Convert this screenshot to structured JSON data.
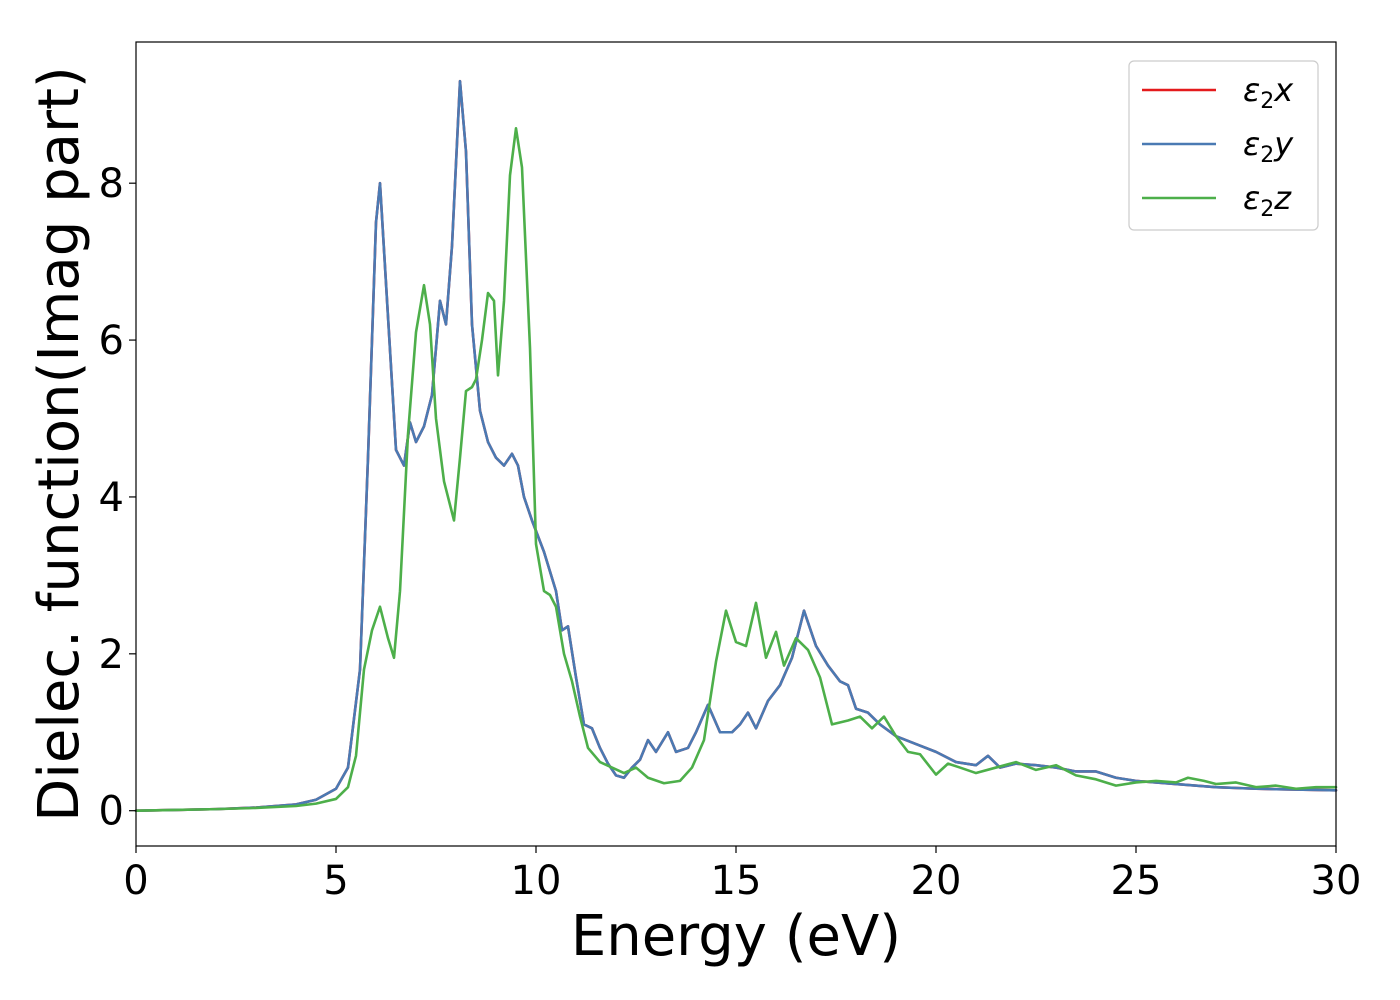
{
  "chart_data": {
    "type": "line",
    "title": "",
    "xlabel": "Energy (eV)",
    "ylabel": "Dielec. function(Imag part)",
    "xlim": [
      0,
      30
    ],
    "ylim": [
      -0.45,
      9.8
    ],
    "xticks": [
      0,
      5,
      10,
      15,
      20,
      25,
      30
    ],
    "yticks": [
      0,
      2,
      4,
      6,
      8
    ],
    "grid": false,
    "legend_position": "top-right",
    "series": [
      {
        "name": "ε₂x",
        "legend_base": "ε",
        "legend_sub": "2",
        "legend_var": "x",
        "color": "#e41a1c",
        "x": [
          0,
          1,
          2,
          3,
          4,
          4.5,
          5,
          5.3,
          5.6,
          5.8,
          6.0,
          6.1,
          6.3,
          6.5,
          6.7,
          6.85,
          7.0,
          7.2,
          7.4,
          7.6,
          7.75,
          7.9,
          8.1,
          8.25,
          8.4,
          8.6,
          8.8,
          9.0,
          9.2,
          9.4,
          9.55,
          9.7,
          9.9,
          10.2,
          10.5,
          10.65,
          10.8,
          11.0,
          11.2,
          11.4,
          11.6,
          11.8,
          12.0,
          12.2,
          12.4,
          12.6,
          12.8,
          13.0,
          13.3,
          13.5,
          13.8,
          14.0,
          14.3,
          14.6,
          14.9,
          15.1,
          15.3,
          15.5,
          15.8,
          16.1,
          16.4,
          16.7,
          17.0,
          17.3,
          17.6,
          17.8,
          18.0,
          18.3,
          18.6,
          19.0,
          19.5,
          20.0,
          20.5,
          21.0,
          21.3,
          21.6,
          22.0,
          22.5,
          23.0,
          23.5,
          24.0,
          24.5,
          25.0,
          26.0,
          27.0,
          28.0,
          29.0,
          30.0
        ],
        "values": [
          0,
          0.01,
          0.02,
          0.04,
          0.08,
          0.14,
          0.28,
          0.55,
          1.8,
          4.5,
          7.5,
          8.0,
          6.3,
          4.6,
          4.4,
          4.95,
          4.7,
          4.9,
          5.3,
          6.5,
          6.2,
          7.2,
          9.3,
          8.4,
          6.2,
          5.1,
          4.7,
          4.5,
          4.4,
          4.55,
          4.4,
          4.0,
          3.7,
          3.3,
          2.8,
          2.3,
          2.35,
          1.7,
          1.1,
          1.05,
          0.8,
          0.6,
          0.45,
          0.42,
          0.55,
          0.65,
          0.9,
          0.75,
          1.0,
          0.75,
          0.8,
          1.0,
          1.35,
          1.0,
          1.0,
          1.1,
          1.25,
          1.05,
          1.4,
          1.6,
          1.95,
          2.55,
          2.1,
          1.85,
          1.65,
          1.6,
          1.3,
          1.25,
          1.1,
          0.95,
          0.85,
          0.75,
          0.62,
          0.58,
          0.7,
          0.55,
          0.6,
          0.58,
          0.55,
          0.5,
          0.5,
          0.42,
          0.38,
          0.34,
          0.3,
          0.28,
          0.27,
          0.26
        ]
      },
      {
        "name": "ε₂y",
        "legend_base": "ε",
        "legend_sub": "2",
        "legend_var": "y",
        "color": "#4a7ab3",
        "x": [
          0,
          1,
          2,
          3,
          4,
          4.5,
          5,
          5.3,
          5.6,
          5.8,
          6.0,
          6.1,
          6.3,
          6.5,
          6.7,
          6.85,
          7.0,
          7.2,
          7.4,
          7.6,
          7.75,
          7.9,
          8.1,
          8.25,
          8.4,
          8.6,
          8.8,
          9.0,
          9.2,
          9.4,
          9.55,
          9.7,
          9.9,
          10.2,
          10.5,
          10.65,
          10.8,
          11.0,
          11.2,
          11.4,
          11.6,
          11.8,
          12.0,
          12.2,
          12.4,
          12.6,
          12.8,
          13.0,
          13.3,
          13.5,
          13.8,
          14.0,
          14.3,
          14.6,
          14.9,
          15.1,
          15.3,
          15.5,
          15.8,
          16.1,
          16.4,
          16.7,
          17.0,
          17.3,
          17.6,
          17.8,
          18.0,
          18.3,
          18.6,
          19.0,
          19.5,
          20.0,
          20.5,
          21.0,
          21.3,
          21.6,
          22.0,
          22.5,
          23.0,
          23.5,
          24.0,
          24.5,
          25.0,
          26.0,
          27.0,
          28.0,
          29.0,
          30.0
        ],
        "values": [
          0,
          0.01,
          0.02,
          0.04,
          0.08,
          0.14,
          0.28,
          0.55,
          1.8,
          4.5,
          7.5,
          8.0,
          6.3,
          4.6,
          4.4,
          4.95,
          4.7,
          4.9,
          5.3,
          6.5,
          6.2,
          7.2,
          9.3,
          8.4,
          6.2,
          5.1,
          4.7,
          4.5,
          4.4,
          4.55,
          4.4,
          4.0,
          3.7,
          3.3,
          2.8,
          2.3,
          2.35,
          1.7,
          1.1,
          1.05,
          0.8,
          0.6,
          0.45,
          0.42,
          0.55,
          0.65,
          0.9,
          0.75,
          1.0,
          0.75,
          0.8,
          1.0,
          1.35,
          1.0,
          1.0,
          1.1,
          1.25,
          1.05,
          1.4,
          1.6,
          1.95,
          2.55,
          2.1,
          1.85,
          1.65,
          1.6,
          1.3,
          1.25,
          1.1,
          0.95,
          0.85,
          0.75,
          0.62,
          0.58,
          0.7,
          0.55,
          0.6,
          0.58,
          0.55,
          0.5,
          0.5,
          0.42,
          0.38,
          0.34,
          0.3,
          0.28,
          0.27,
          0.26
        ]
      },
      {
        "name": "ε₂z",
        "legend_base": "ε",
        "legend_sub": "2",
        "legend_var": "z",
        "color": "#4daf4a",
        "x": [
          0,
          1,
          2,
          3,
          4,
          4.5,
          5,
          5.3,
          5.5,
          5.7,
          5.9,
          6.1,
          6.3,
          6.45,
          6.6,
          6.8,
          7.0,
          7.2,
          7.35,
          7.5,
          7.7,
          7.95,
          8.1,
          8.25,
          8.4,
          8.5,
          8.65,
          8.8,
          8.95,
          9.05,
          9.2,
          9.35,
          9.5,
          9.65,
          9.85,
          10.0,
          10.2,
          10.35,
          10.5,
          10.7,
          10.9,
          11.1,
          11.3,
          11.6,
          11.9,
          12.2,
          12.5,
          12.8,
          13.2,
          13.6,
          13.9,
          14.2,
          14.5,
          14.75,
          15.0,
          15.25,
          15.5,
          15.75,
          16.0,
          16.2,
          16.5,
          16.8,
          17.1,
          17.4,
          17.8,
          18.1,
          18.4,
          18.7,
          19.0,
          19.3,
          19.6,
          20.0,
          20.3,
          20.6,
          21.0,
          21.5,
          22.0,
          22.5,
          23.0,
          23.5,
          24.0,
          24.5,
          25.0,
          25.5,
          26.0,
          26.3,
          26.7,
          27.0,
          27.5,
          28.0,
          28.5,
          29.0,
          29.5,
          30.0
        ],
        "values": [
          0,
          0.01,
          0.02,
          0.035,
          0.06,
          0.09,
          0.15,
          0.3,
          0.7,
          1.8,
          2.3,
          2.6,
          2.2,
          1.95,
          2.8,
          4.8,
          6.1,
          6.7,
          6.2,
          5.0,
          4.2,
          3.7,
          4.5,
          5.35,
          5.4,
          5.5,
          6.0,
          6.6,
          6.5,
          5.55,
          6.5,
          8.1,
          8.7,
          8.2,
          5.9,
          3.4,
          2.8,
          2.75,
          2.6,
          2.0,
          1.65,
          1.2,
          0.8,
          0.62,
          0.55,
          0.48,
          0.55,
          0.42,
          0.35,
          0.38,
          0.55,
          0.9,
          1.9,
          2.55,
          2.15,
          2.1,
          2.65,
          1.95,
          2.28,
          1.85,
          2.2,
          2.05,
          1.7,
          1.1,
          1.15,
          1.2,
          1.05,
          1.2,
          0.95,
          0.75,
          0.72,
          0.46,
          0.6,
          0.55,
          0.48,
          0.55,
          0.62,
          0.52,
          0.58,
          0.45,
          0.4,
          0.32,
          0.36,
          0.38,
          0.36,
          0.42,
          0.38,
          0.34,
          0.36,
          0.3,
          0.32,
          0.28,
          0.3,
          0.3
        ]
      }
    ]
  }
}
